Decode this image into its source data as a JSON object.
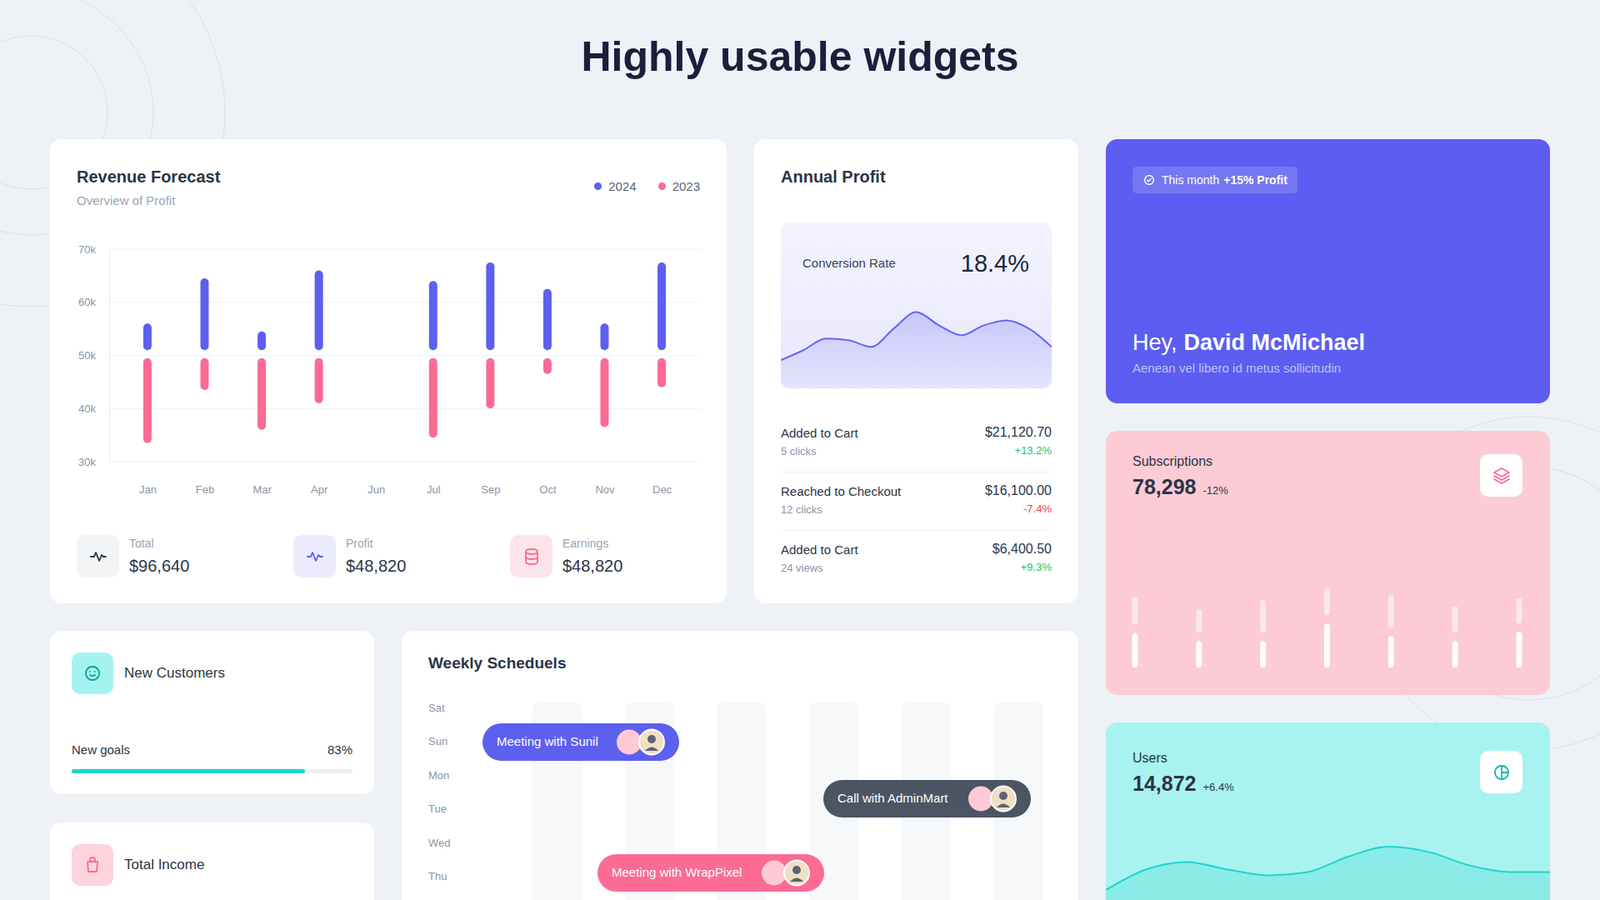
{
  "page": {
    "title": "Highly usable widgets"
  },
  "chart_data": [
    {
      "type": "floating_bar",
      "title": "Revenue Forecast",
      "subtitle": "Overview of Profit",
      "categories": [
        "Jan",
        "Feb",
        "Mar",
        "Apr",
        "Jun",
        "Jul",
        "Sep",
        "Oct",
        "Nov",
        "Dec"
      ],
      "series": [
        {
          "name": "2024",
          "color": "#5d5fef",
          "start": [
            51000,
            51000,
            51000,
            51000,
            null,
            51000,
            51000,
            51000,
            51000,
            51000
          ],
          "values": [
            56000,
            64500,
            54500,
            66000,
            null,
            64000,
            67500,
            62500,
            56000,
            67500
          ]
        },
        {
          "name": "2023",
          "color": "#fb6b94",
          "start": [
            49500,
            49500,
            49500,
            49500,
            null,
            49500,
            49500,
            49500,
            49500,
            49500
          ],
          "values": [
            33500,
            43500,
            36000,
            41000,
            null,
            34500,
            40000,
            46500,
            36500,
            44000
          ]
        }
      ],
      "ylim": [
        30000,
        70000
      ],
      "yticks": [
        {
          "value": 30000,
          "label": "30k"
        },
        {
          "value": 40000,
          "label": "40k"
        },
        {
          "value": 50000,
          "label": "50k"
        },
        {
          "value": 60000,
          "label": "60k"
        },
        {
          "value": 70000,
          "label": "70k"
        }
      ],
      "grid": true,
      "legend": "top-right"
    },
    {
      "type": "area",
      "title": "Conversion Rate",
      "categories": [
        null,
        null,
        null,
        null,
        null,
        null,
        null,
        null,
        null,
        null,
        null,
        null,
        null
      ],
      "values": [
        17,
        23,
        30,
        29,
        25,
        36,
        46,
        38,
        32,
        38,
        41,
        36,
        25
      ],
      "ylim": [
        0,
        100
      ],
      "color": "#6366f1",
      "tick_labels": false
    },
    {
      "type": "bar",
      "title": "Subscriptions",
      "categories": [
        null,
        null,
        null,
        null,
        null,
        null,
        null
      ],
      "series": [
        {
          "color": "#ffffff",
          "values": [
            34,
            26,
            26,
            43,
            31,
            26,
            35
          ]
        },
        {
          "color": "#fde7ee",
          "values": [
            27,
            23,
            32,
            27,
            32,
            26,
            25
          ]
        }
      ],
      "stacked": true,
      "ylim": [
        0,
        100
      ],
      "tick_labels": false
    },
    {
      "type": "area",
      "title": "Users",
      "categories": [
        null,
        null,
        null,
        null,
        null,
        null,
        null,
        null,
        null,
        null,
        null,
        null
      ],
      "values": [
        15,
        46,
        57,
        46,
        37,
        42,
        65,
        80,
        72,
        52,
        42,
        42
      ],
      "ylim": [
        0,
        100
      ],
      "color": "#22d3ce",
      "tick_labels": false
    }
  ],
  "revenue_stats": [
    {
      "label": "Total",
      "value": "$96,640"
    },
    {
      "label": "Profit",
      "value": "$48,820"
    },
    {
      "label": "Earnings",
      "value": "$48,820"
    }
  ],
  "annual_profit": {
    "title": "Annual Profit",
    "metric_value": "18.4%",
    "rows": [
      {
        "label": "Added to Cart",
        "detail": "5 clicks",
        "amount": "$21,120.70",
        "change": "+13.2%"
      },
      {
        "label": "Reached to Checkout",
        "detail": "12 clicks",
        "amount": "$16,100.00",
        "change": "-7.4%"
      },
      {
        "label": "Added to Cart",
        "detail": "24 views",
        "amount": "$6,400.50",
        "change": "+9.3%"
      }
    ]
  },
  "welcome": {
    "badge_prefix": "This month",
    "badge_value": "+15% Profit",
    "greeting": "Hey,",
    "name": "David McMichael",
    "subtitle": "Aenean vel libero id metus sollicitudin"
  },
  "subscriptions": {
    "value": "78,298",
    "change": "-12%"
  },
  "users": {
    "value": "14,872",
    "change": "+6.4%"
  },
  "new_customers": {
    "title": "New Customers",
    "progress": {
      "label": "New goals",
      "value": 83,
      "value_label": "83%",
      "range": [
        0,
        100
      ]
    }
  },
  "total_income": {
    "title": "Total Income"
  },
  "weekly_schedules": {
    "title": "Weekly Scheduels",
    "days": [
      "Sat",
      "Sun",
      "Mon",
      "Tue",
      "Wed",
      "Thu"
    ],
    "events": [
      {
        "label": "Meeting with Sunil"
      },
      {
        "label": "Call with AdminMart"
      },
      {
        "label": "Meeting with WrapPixel"
      }
    ]
  }
}
